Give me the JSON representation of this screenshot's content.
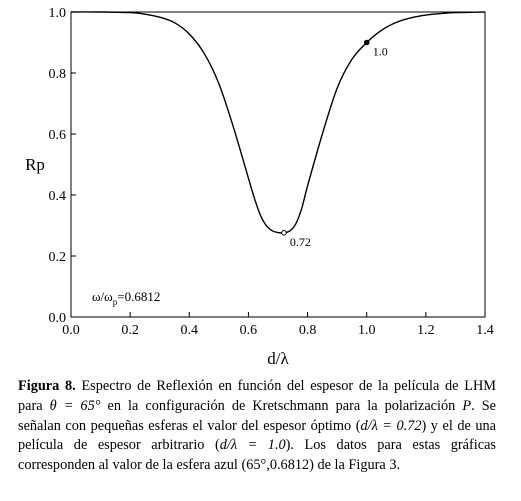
{
  "chart_data": {
    "type": "line",
    "xlabel": "d/λ",
    "ylabel": "Rp",
    "xlim": [
      0.0,
      1.4
    ],
    "ylim": [
      0.0,
      1.0
    ],
    "x_ticks": [
      "0.0",
      "0.2",
      "0.4",
      "0.6",
      "0.8",
      "1.0",
      "1.2",
      "1.4"
    ],
    "y_ticks": [
      "0.0",
      "0.2",
      "0.4",
      "0.6",
      "0.8",
      "1.0"
    ],
    "grid": false,
    "series": [
      {
        "x": [
          0.0,
          0.1,
          0.2,
          0.25,
          0.3,
          0.35,
          0.4,
          0.45,
          0.5,
          0.55,
          0.6,
          0.62,
          0.64,
          0.66,
          0.68,
          0.7,
          0.72,
          0.74,
          0.76,
          0.78,
          0.8,
          0.85,
          0.9,
          0.95,
          1.0,
          1.05,
          1.1,
          1.15,
          1.2,
          1.25,
          1.3,
          1.35,
          1.4
        ],
        "y": [
          1.0,
          1.0,
          0.998,
          0.993,
          0.983,
          0.965,
          0.928,
          0.865,
          0.765,
          0.62,
          0.455,
          0.39,
          0.335,
          0.3,
          0.283,
          0.277,
          0.276,
          0.282,
          0.305,
          0.355,
          0.43,
          0.6,
          0.75,
          0.845,
          0.9,
          0.94,
          0.966,
          0.981,
          0.99,
          0.995,
          0.998,
          0.999,
          1.0
        ]
      }
    ],
    "markers": [
      {
        "x": 0.72,
        "y": 0.276,
        "label": "0.72",
        "style": "open"
      },
      {
        "x": 1.0,
        "y": 0.9,
        "label": "1.0",
        "style": "filled"
      }
    ],
    "annotation": {
      "main": "ω/ω",
      "sub": "p",
      "value": "=0.6812"
    }
  },
  "caption": {
    "label": "Figura 8.",
    "p1": " Espectro de Reflexión en función del espesor de la película de LHM para ",
    "m1": "θ = 65°",
    "p2": " en la configuración de Kretschmann para la polarización ",
    "m2": "P",
    "p3": ". Se señalan con pequeñas esferas el valor del espesor óptimo (",
    "m3": "d/λ = 0.72",
    "p4": ") y el de una película de espesor arbitrario (",
    "m4": "d/λ = 1.0",
    "p5": "). Los datos para estas gráficas corresponden al valor de la esfera azul (65°,0.6812) de la Figura 3."
  }
}
